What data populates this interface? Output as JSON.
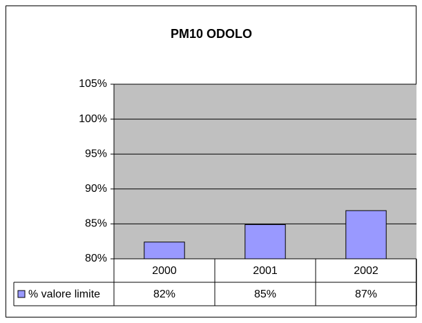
{
  "chart_data": {
    "type": "bar",
    "title": "PM10 ODOLO",
    "categories": [
      "2000",
      "2001",
      "2002"
    ],
    "series": [
      {
        "name": "% valore limite",
        "color": "#9999ff",
        "values": [
          82.4,
          84.9,
          86.9
        ],
        "value_labels": [
          "82%",
          "85%",
          "87%"
        ]
      }
    ],
    "ylim": [
      80,
      105
    ],
    "yticks": [
      {
        "value": 80,
        "label": "80%"
      },
      {
        "value": 85,
        "label": "85%"
      },
      {
        "value": 90,
        "label": "90%"
      },
      {
        "value": 95,
        "label": "95%"
      },
      {
        "value": 100,
        "label": "100%"
      },
      {
        "value": 105,
        "label": "105%"
      }
    ],
    "grid": true,
    "plot_background": "#c0c0c0"
  }
}
